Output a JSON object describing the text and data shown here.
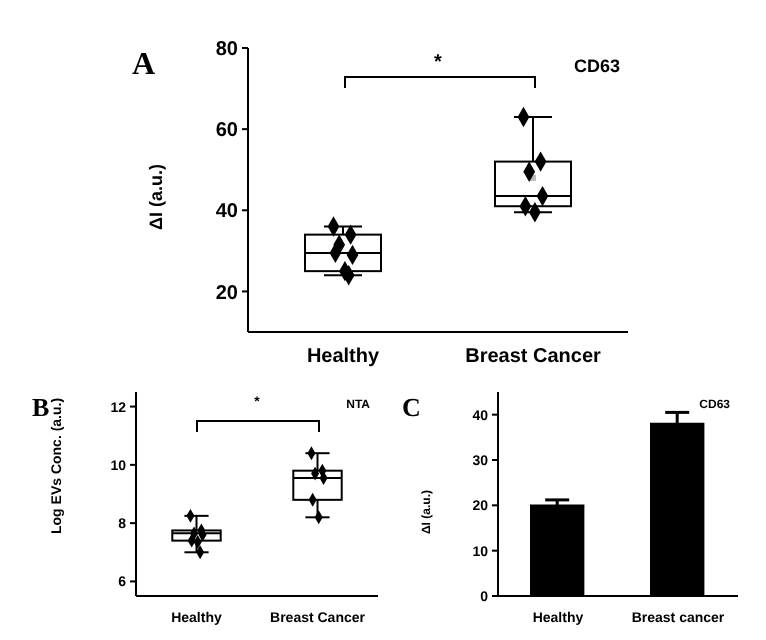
{
  "chart_data": [
    {
      "type": "box",
      "categories": [
        "Healthy",
        "Breast Cancer"
      ],
      "ylabel": "ΔI (a.u.)",
      "ylim": [
        10,
        80
      ],
      "yticks": [
        20,
        40,
        60,
        80
      ],
      "grid": false,
      "legend": false,
      "marker": "diamond",
      "color": "#000000",
      "boxes": [
        {
          "low": 24,
          "q1": 25,
          "median": 29.5,
          "q3": 34,
          "high": 36
        },
        {
          "low": 39.5,
          "q1": 41,
          "median": 43.5,
          "q3": 52,
          "high": 63,
          "mean": 48
        }
      ],
      "series": [
        {
          "type": "scatter",
          "color": "#000000",
          "x": [
            "Healthy",
            "Healthy",
            "Healthy",
            "Healthy",
            "Healthy",
            "Healthy",
            "Healthy",
            "Breast Cancer",
            "Breast Cancer",
            "Breast Cancer",
            "Breast Cancer",
            "Breast Cancer",
            "Breast Cancer"
          ],
          "values": [
            36,
            34,
            31.5,
            29,
            29.5,
            25,
            24,
            63,
            52,
            49.5,
            43.5,
            41,
            39.5
          ]
        }
      ],
      "annotations": [
        "A",
        "CD63",
        "*"
      ]
    },
    {
      "type": "box",
      "categories": [
        "Healthy",
        "Breast Cancer"
      ],
      "ylabel": "Log EVs Conc. (a.u.)",
      "ylim": [
        5.5,
        12.5
      ],
      "yticks": [
        6,
        8,
        10,
        12
      ],
      "grid": false,
      "legend": false,
      "marker": "diamond",
      "color": "#000000",
      "boxes": [
        {
          "low": 7,
          "q1": 7.4,
          "median": 7.65,
          "q3": 7.75,
          "high": 8.25
        },
        {
          "low": 8.2,
          "q1": 8.8,
          "median": 9.55,
          "q3": 9.8,
          "high": 10.4
        }
      ],
      "series": [
        {
          "type": "scatter",
          "color": "#000000",
          "x": [
            "Healthy",
            "Healthy",
            "Healthy",
            "Healthy",
            "Healthy",
            "Healthy",
            "Healthy",
            "Breast Cancer",
            "Breast Cancer",
            "Breast Cancer",
            "Breast Cancer",
            "Breast Cancer",
            "Breast Cancer"
          ],
          "values": [
            8.25,
            7.75,
            7.65,
            7.6,
            7.4,
            7.35,
            7,
            10.4,
            9.8,
            9.7,
            9.55,
            8.8,
            8.2
          ]
        }
      ],
      "annotations": [
        "B",
        "NTA",
        "*"
      ]
    },
    {
      "type": "bar",
      "categories": [
        "Healthy",
        "Breast cancer"
      ],
      "ylabel": "ΔI (a.u.)",
      "ylim": [
        0,
        45
      ],
      "yticks": [
        0,
        10,
        20,
        30,
        40
      ],
      "grid": false,
      "legend": false,
      "series": [
        {
          "color": "#000000",
          "values": [
            20.2,
            38.2
          ],
          "errors": [
            1,
            2.3
          ]
        }
      ],
      "annotations": [
        "C",
        "CD63"
      ]
    }
  ]
}
